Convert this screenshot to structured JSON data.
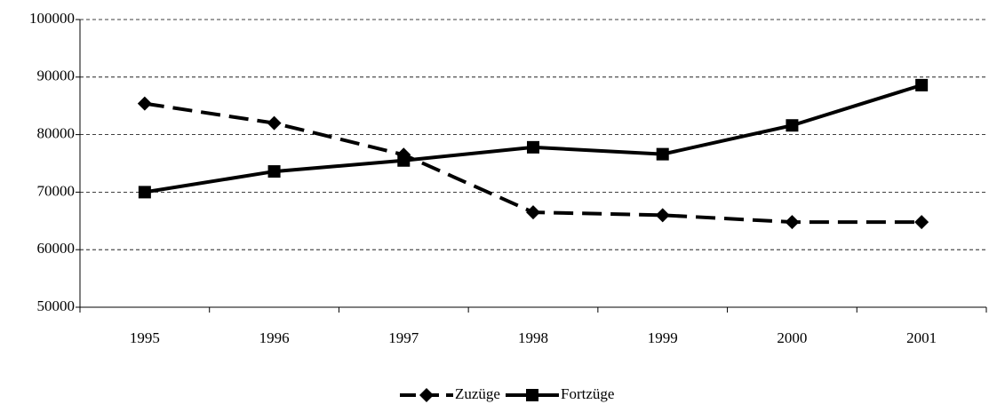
{
  "chart_data": {
    "type": "line",
    "categories": [
      "1995",
      "1996",
      "1997",
      "1998",
      "1999",
      "2000",
      "2001"
    ],
    "series": [
      {
        "name": "Zuzüge",
        "color": "#000000",
        "line_style": "dashed",
        "marker": "diamond",
        "values": [
          85400,
          82000,
          76500,
          66500,
          66000,
          64800,
          64800
        ]
      },
      {
        "name": "Fortzüge",
        "color": "#000000",
        "line_style": "solid",
        "marker": "square",
        "values": [
          70000,
          73600,
          75500,
          77800,
          76600,
          81600,
          88600
        ]
      }
    ],
    "ylim": [
      50000,
      100000
    ],
    "yticks": [
      50000,
      60000,
      70000,
      80000,
      90000,
      100000
    ],
    "grid": true,
    "legend": "bottom"
  }
}
